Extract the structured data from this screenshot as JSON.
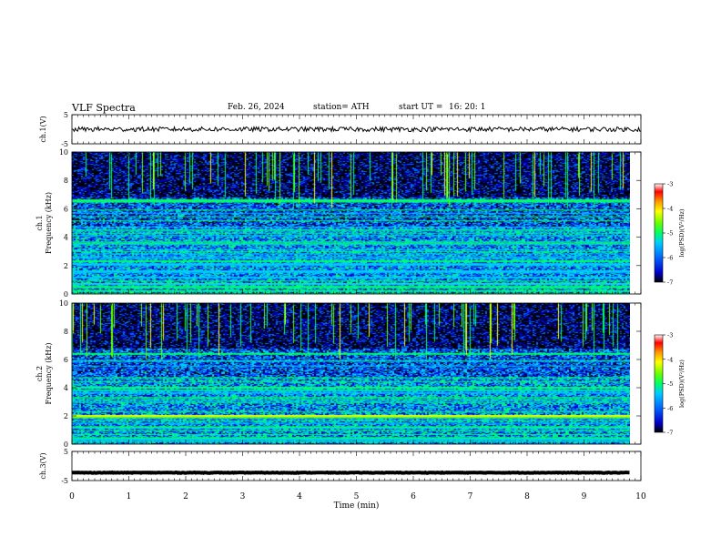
{
  "header": {
    "title": "VLF  Spectra",
    "date": "Feb. 26, 2024",
    "station": "station= ATH",
    "start_ut_label": "start  UT  =",
    "start_ut": "16: 20: 1"
  },
  "chart_data": [
    {
      "type": "line",
      "name": "ch.1 waveform",
      "ylabel": "ch.1(V)",
      "ylim": [
        -5,
        5
      ],
      "yticks": [
        "5",
        "-5"
      ],
      "x_range": [
        0,
        10
      ],
      "baseline": 0,
      "amplitude_approx": 0.8,
      "color": "#000000"
    },
    {
      "type": "heatmap",
      "name": "ch.1 spectrogram",
      "ylabel": "ch.1\nFrequency  (kHz)",
      "ylim": [
        0,
        10
      ],
      "yticks": [
        "0",
        "2",
        "4",
        "6",
        "8",
        "10"
      ],
      "x_range": [
        0,
        9.8
      ],
      "bands_khz": [
        {
          "f": 6.6,
          "level": -5.0
        },
        {
          "f": 6.5,
          "level": -5.2
        },
        {
          "f": 2.3,
          "level": -5.2
        },
        {
          "f": 2.1,
          "level": -5.3
        },
        {
          "f": 1.6,
          "level": -5.5
        },
        {
          "f": 0.7,
          "level": -4.5
        },
        {
          "f": 0.5,
          "level": -5.0
        },
        {
          "f": 0.2,
          "level": -5.2
        }
      ],
      "colorbar": {
        "label": "log(PSD)(V²/Hz)",
        "ticks": [
          "-3",
          "-4",
          "-5",
          "-6",
          "-7"
        ],
        "range": [
          -7,
          -3
        ]
      }
    },
    {
      "type": "heatmap",
      "name": "ch.2 spectrogram",
      "ylabel": "ch.2\nFrequency  (kHz)",
      "ylim": [
        0,
        10
      ],
      "yticks": [
        "0",
        "2",
        "4",
        "6",
        "8",
        "10"
      ],
      "x_range": [
        0,
        9.8
      ],
      "bands_khz": [
        {
          "f": 6.4,
          "level": -5.2
        },
        {
          "f": 4.0,
          "level": -5.0
        },
        {
          "f": 2.0,
          "level": -4.0
        },
        {
          "f": 1.9,
          "level": -4.5
        },
        {
          "f": 1.2,
          "level": -5.0
        },
        {
          "f": 0.4,
          "level": -5.0
        }
      ],
      "colorbar": {
        "label": "log(PSD)(V²/Hz)",
        "ticks": [
          "-3",
          "-4",
          "-5",
          "-6",
          "-7"
        ],
        "range": [
          -7,
          -3
        ]
      }
    },
    {
      "type": "line",
      "name": "ch.3 waveform",
      "ylabel": "ch.3(V)",
      "ylim": [
        -5,
        5
      ],
      "yticks": [
        "5",
        "-5"
      ],
      "x_range": [
        0,
        9.8
      ],
      "baseline": -2.3,
      "amplitude_approx": 0.1,
      "color": "#000000"
    }
  ],
  "x_axis": {
    "label": "Time  (min)",
    "ticks": [
      "0",
      "1",
      "2",
      "3",
      "4",
      "5",
      "6",
      "7",
      "8",
      "9",
      "10"
    ],
    "range": [
      0,
      10
    ]
  },
  "colors": {
    "colormap": [
      "#000000",
      "#0000cc",
      "#0066ff",
      "#00ccff",
      "#00ff66",
      "#66ff00",
      "#ffff00",
      "#ff9900",
      "#ff0000",
      "#ffffff"
    ]
  }
}
